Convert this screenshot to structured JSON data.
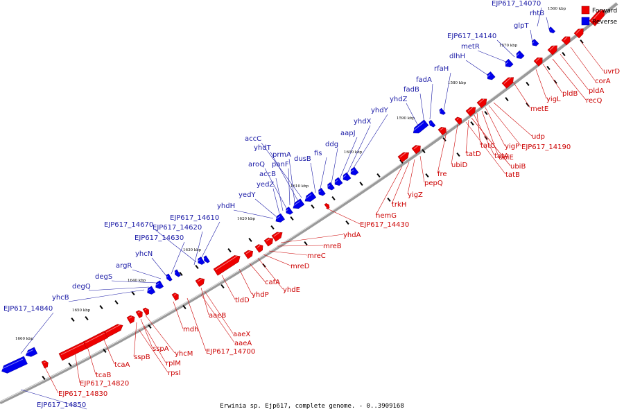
{
  "caption": "Erwinia sp. Ejp617, complete genome. - 0..3909168",
  "legend": {
    "forward_label": "Forward",
    "reverse_label": "Reverse",
    "forward_color": "#ee0000",
    "reverse_color": "#0000ee"
  },
  "kbp_labels": [
    "1560 kbp",
    "1570 kbp",
    "1580 kbp",
    "1590 kbp",
    "1600 kbp",
    "1610 kbp",
    "1620 kbp",
    "1630 kbp",
    "1640 kbp",
    "1650 kbp",
    "1660 kbp"
  ],
  "forward_genes": [
    "uvrD",
    "corA",
    "pldA",
    "recQ",
    "pldB",
    "yigL",
    "metE",
    "udp",
    "EJP617_14190",
    "yigP",
    "ubiE",
    "tatC",
    "tatA",
    "ubiB",
    "tatD",
    "tatB",
    "ubiD",
    "fre",
    "pepQ",
    "yigZ",
    "trkH",
    "hemG",
    "EJP617_14430",
    "yhdA",
    "mreB",
    "mreC",
    "mreD",
    "yhdE",
    "cafA",
    "yhdP",
    "tldD",
    "aaeB",
    "aaeX",
    "aaeA",
    "EJP617_14700",
    "mdh",
    "yhcM",
    "sspA",
    "sspB",
    "rplM",
    "rpsI",
    "tcaA",
    "tcaB",
    "EJP617_14820",
    "EJP617_14830"
  ],
  "reverse_genes": [
    "EJP617_14070",
    "rhtB",
    "glpT",
    "EJP617_14140",
    "metR",
    "dlhH",
    "rfaH",
    "fadA",
    "fadB",
    "yhdZ",
    "yhdY",
    "yhdX",
    "aapJ",
    "ddg",
    "fis",
    "dusB",
    "accC",
    "yhdT",
    "prmA",
    "panF",
    "aroQ",
    "accB",
    "yedZ",
    "yedY",
    "yhdH",
    "EJP617_14610",
    "EJP617_14670",
    "EJP617_14620",
    "EJP617_14630",
    "yhcN",
    "argR",
    "degS",
    "degQ",
    "yhcB",
    "EJP617_14840",
    "EJP617_14850"
  ]
}
